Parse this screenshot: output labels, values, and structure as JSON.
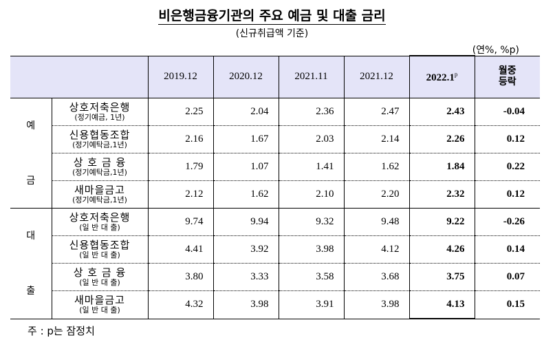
{
  "title": "비은행금융기관의 주요 예금 및 대출 금리",
  "subtitle": "(신규취급액 기준)",
  "unit": "(연%, %p)",
  "header": {
    "periods": [
      "2019.12",
      "2020.12",
      "2021.11",
      "2021.12"
    ],
    "latest": "2022.1",
    "latest_sup": "p",
    "change_line1": "월중",
    "change_line2": "등락"
  },
  "sections": [
    {
      "label_top": "예",
      "label_bottom": "금",
      "rows": [
        {
          "name": "상호저축은행",
          "sub": "(정기예금, 1년)",
          "values": [
            "2.25",
            "2.04",
            "2.36",
            "2.47"
          ],
          "latest": "2.43",
          "change": "-0.04"
        },
        {
          "name": "신용협동조합",
          "sub": "(정기예탁금,1년)",
          "values": [
            "2.16",
            "1.67",
            "2.03",
            "2.14"
          ],
          "latest": "2.26",
          "change": "0.12"
        },
        {
          "name": "상 호  금 융",
          "sub": "(정기예탁금,1년)",
          "values": [
            "1.79",
            "1.07",
            "1.41",
            "1.62"
          ],
          "latest": "1.84",
          "change": "0.22"
        },
        {
          "name": "새마을금고",
          "sub": "(정기예탁금,1년)",
          "values": [
            "2.12",
            "1.62",
            "2.10",
            "2.20"
          ],
          "latest": "2.32",
          "change": "0.12"
        }
      ]
    },
    {
      "label_top": "대",
      "label_bottom": "출",
      "rows": [
        {
          "name": "상호저축은행",
          "sub": "(일 반 대 출)",
          "values": [
            "9.74",
            "9.94",
            "9.32",
            "9.48"
          ],
          "latest": "9.22",
          "change": "-0.26"
        },
        {
          "name": "신용협동조합",
          "sub": "(일 반 대 출)",
          "values": [
            "4.41",
            "3.92",
            "3.98",
            "4.12"
          ],
          "latest": "4.26",
          "change": "0.14"
        },
        {
          "name": "상 호  금 융",
          "sub": "(일 반 대 출)",
          "values": [
            "3.80",
            "3.33",
            "3.58",
            "3.68"
          ],
          "latest": "3.75",
          "change": "0.07"
        },
        {
          "name": "새마을금고",
          "sub": "(일 반 대 출)",
          "values": [
            "4.32",
            "3.98",
            "3.91",
            "3.98"
          ],
          "latest": "4.13",
          "change": "0.15"
        }
      ]
    }
  ],
  "note": "주 : p는 잠정치"
}
